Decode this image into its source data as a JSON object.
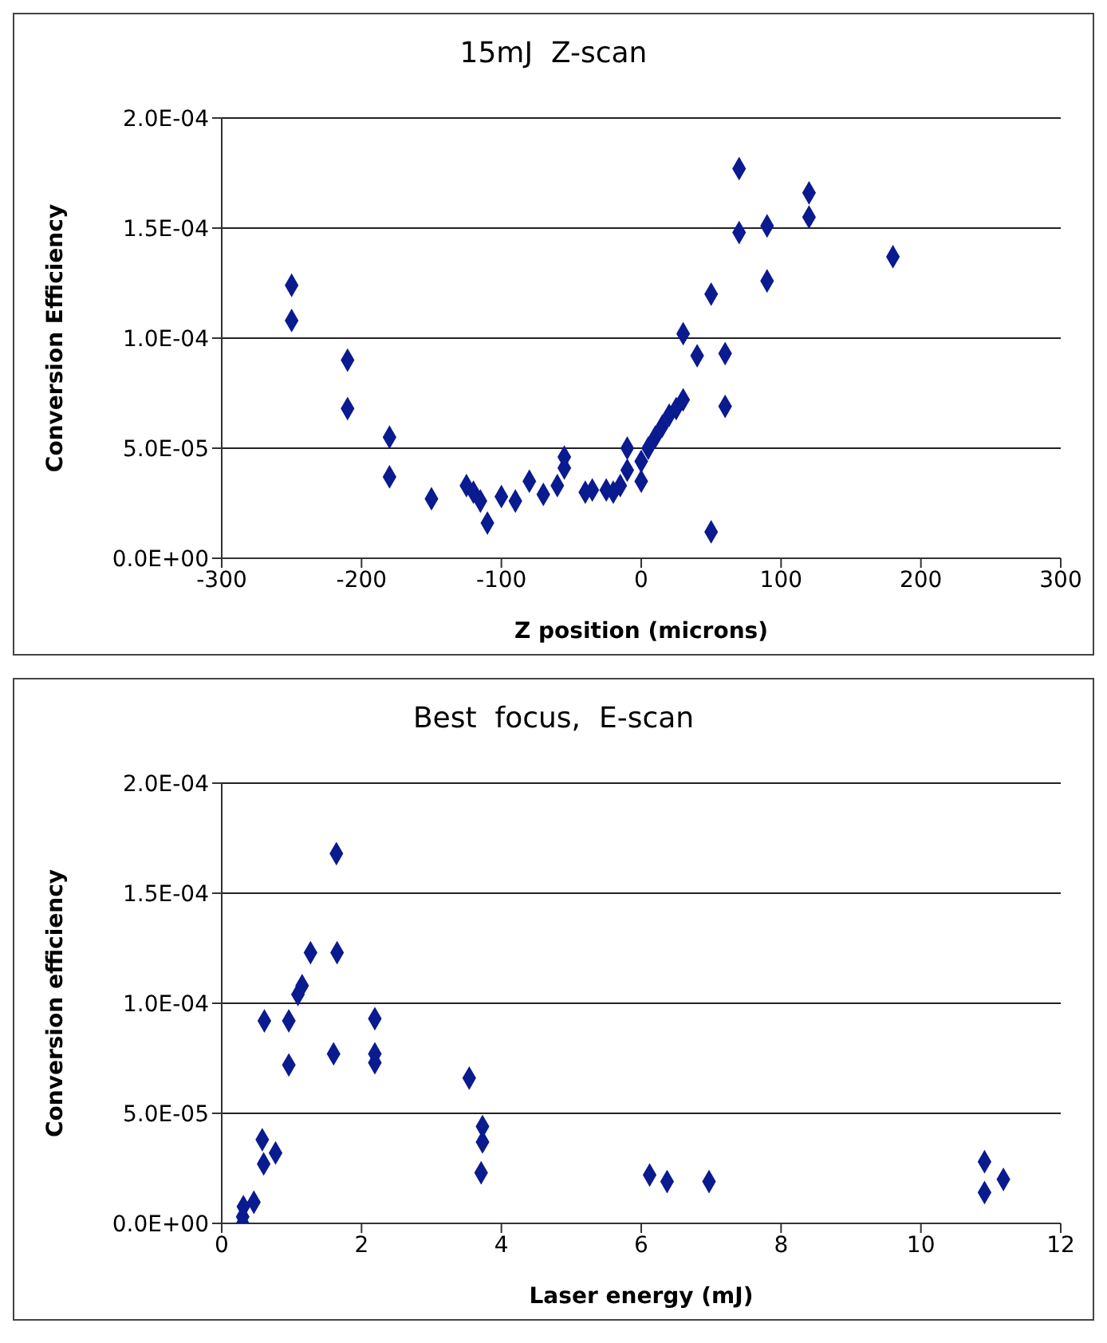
{
  "chart_data": [
    {
      "type": "scatter",
      "title": "15mJ  Z-scan",
      "xlabel": "Z  position  (microns)",
      "ylabel": "Conversion   Efficiency",
      "xlim": [
        -300,
        300
      ],
      "xticks": [
        -300,
        -200,
        -100,
        0,
        100,
        200,
        300
      ],
      "ylim": [
        0,
        0.0002
      ],
      "yticks": [
        {
          "value": 0,
          "label": "0.0E+00"
        },
        {
          "value": 5e-05,
          "label": "5.0E-05"
        },
        {
          "value": 0.0001,
          "label": "1.0E-04"
        },
        {
          "value": 0.00015,
          "label": "1.5E-04"
        },
        {
          "value": 0.0002,
          "label": "2.0E-04"
        }
      ],
      "grid": "y",
      "legend": false,
      "marker": "diamond",
      "series": [
        {
          "color": "#0a1a8f",
          "x": [
            -250,
            -250,
            -210,
            -210,
            -180,
            -180,
            -150,
            -125,
            -120,
            -115,
            -110,
            -100,
            -90,
            -80,
            -70,
            -60,
            -55,
            -55,
            -40,
            -35,
            -25,
            -20,
            -15,
            -10,
            -10,
            0,
            0,
            5,
            10,
            15,
            20,
            25,
            30,
            30,
            40,
            50,
            50,
            60,
            60,
            70,
            70,
            90,
            90,
            120,
            120,
            180
          ],
          "values": [
            0.000124,
            0.000108,
            9e-05,
            6.8e-05,
            5.5e-05,
            3.7e-05,
            2.7e-05,
            3.3e-05,
            3e-05,
            2.6e-05,
            1.6e-05,
            2.8e-05,
            2.6e-05,
            3.5e-05,
            2.9e-05,
            3.3e-05,
            4.6e-05,
            4.1e-05,
            3e-05,
            3.1e-05,
            3.1e-05,
            3e-05,
            3.3e-05,
            4e-05,
            5e-05,
            3.5e-05,
            4.4e-05,
            5e-05,
            5.5e-05,
            6e-05,
            6.5e-05,
            6.8e-05,
            7.2e-05,
            0.000102,
            9.2e-05,
            0.00012,
            1.2e-05,
            9.3e-05,
            6.9e-05,
            0.000177,
            0.000148,
            0.000151,
            0.000126,
            0.000166,
            0.000155,
            0.000137
          ]
        }
      ]
    },
    {
      "type": "scatter",
      "title": "Best  focus,  E-scan",
      "xlabel": "Laser  energy  (mJ)",
      "ylabel": "Conversion   efficiency",
      "xlim": [
        0,
        12
      ],
      "xticks": [
        0,
        2,
        4,
        6,
        8,
        10,
        12
      ],
      "ylim": [
        0,
        0.0002
      ],
      "yticks": [
        {
          "value": 0,
          "label": "0.0E+00"
        },
        {
          "value": 5e-05,
          "label": "5.0E-05"
        },
        {
          "value": 0.0001,
          "label": "1.0E-04"
        },
        {
          "value": 0.00015,
          "label": "1.5E-04"
        },
        {
          "value": 0.0002,
          "label": "2.0E-04"
        }
      ],
      "grid": "y",
      "legend": false,
      "marker": "diamond",
      "series": [
        {
          "color": "#0a1a8f",
          "x": [
            0.3,
            0.3,
            0.31,
            0.46,
            0.58,
            0.6,
            0.77,
            0.61,
            0.96,
            0.96,
            1.09,
            1.15,
            1.27,
            1.6,
            1.64,
            1.65,
            2.19,
            2.19,
            2.19,
            3.54,
            3.71,
            3.73,
            3.73,
            6.12,
            6.37,
            6.97,
            10.91,
            10.91,
            11.18
          ],
          "values": [
            0.0,
            3e-06,
            7.6e-06,
            9.6e-06,
            3.8e-05,
            2.7e-05,
            3.2e-05,
            9.2e-05,
            9.2e-05,
            7.2e-05,
            0.000104,
            0.000108,
            0.000123,
            7.7e-05,
            0.000168,
            0.000123,
            9.3e-05,
            7.7e-05,
            7.3e-05,
            6.6e-05,
            2.3e-05,
            4.4e-05,
            3.7e-05,
            2.2e-05,
            1.9e-05,
            1.9e-05,
            2.8e-05,
            1.4e-05,
            2e-05
          ]
        }
      ]
    }
  ]
}
